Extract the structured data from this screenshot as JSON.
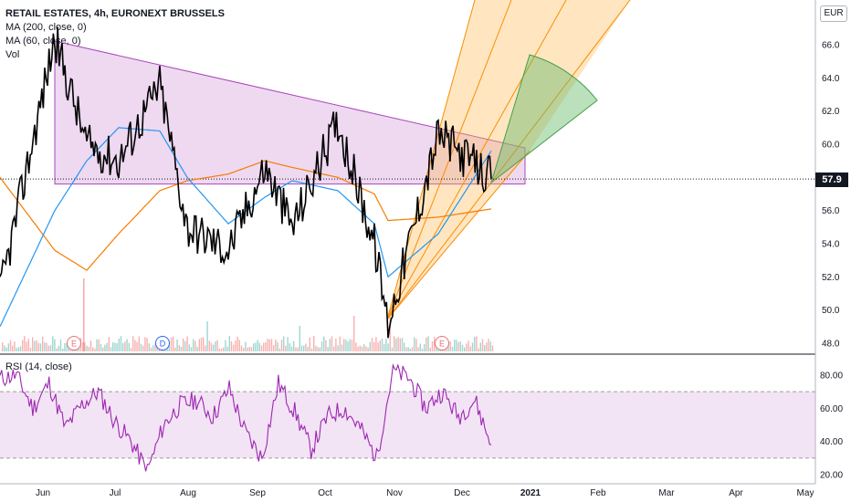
{
  "legend": {
    "title": "RETAIL ESTATES, 4h, EURONEXT BRUSSELS",
    "ma200": "MA (200, close, 0)",
    "ma60": "MA (60, close, 0)",
    "vol": "Vol"
  },
  "currency": "EUR",
  "last_price": "57.9",
  "rsi_label": "RSI (14, close)",
  "event_markers": [
    {
      "letter": "E",
      "color": "#e57373"
    },
    {
      "letter": "D",
      "color": "#2962ff"
    },
    {
      "letter": "E",
      "color": "#e57373"
    }
  ],
  "colors": {
    "price": "#000000",
    "ma60": "#2196f3",
    "ma200": "#f57c00",
    "triangle": "#ce93d8",
    "fan": "#ffb74d",
    "arc": "#66bb6a",
    "rsi": "#9c27b0"
  },
  "chart_data": [
    {
      "type": "line",
      "title": "",
      "x_ticks": [
        "Jun",
        "Jul",
        "Aug",
        "Sep",
        "Oct",
        "Nov",
        "Dec",
        "2021",
        "Feb",
        "Mar",
        "Apr",
        "May"
      ],
      "y_ticks": [
        "48.0",
        "50.0",
        "52.0",
        "54.0",
        "56.0",
        "58.0",
        "60.0",
        "62.0",
        "64.0",
        "66.0"
      ],
      "ylim": [
        47.2,
        67.8
      ],
      "series": [
        {
          "name": "Close",
          "x": [
            "May 2020",
            "Jun 2020",
            "Jun 2020",
            "Jul 2020",
            "Jul 2020",
            "Aug 2020",
            "Aug 2020",
            "Sep 2020",
            "Sep 2020",
            "Oct 2020",
            "Oct 2020",
            "Nov 2020",
            "Nov 2020",
            "Dec 2020"
          ],
          "values": [
            51.0,
            66.4,
            60.0,
            59.0,
            63.6,
            55.0,
            53.6,
            58.6,
            55.0,
            61.4,
            54.0,
            49.2,
            60.6,
            57.9
          ]
        },
        {
          "name": "MA (60, close, 0)",
          "values": [
            49.0,
            56.0,
            59.0,
            61.0,
            60.8,
            58.0,
            55.2,
            56.8,
            57.8,
            57.2,
            55.2,
            52.0,
            54.6,
            59.6
          ]
        },
        {
          "name": "MA (200, close, 0)",
          "values": [
            58.0,
            53.6,
            52.4,
            54.6,
            57.2,
            57.8,
            58.2,
            59.0,
            58.6,
            58.0,
            57.0,
            55.4,
            55.6,
            56.1
          ]
        }
      ]
    },
    {
      "type": "line",
      "title": "RSI (14, close)",
      "y_ticks": [
        "20.00",
        "40.00",
        "60.00",
        "80.00"
      ],
      "ylim": [
        17,
        88
      ],
      "bands": [
        30,
        70
      ],
      "series": [
        {
          "name": "RSI (14, close)",
          "values": [
            78,
            80,
            60,
            75,
            48,
            62,
            70,
            52,
            40,
            22,
            50,
            62,
            65,
            55,
            72,
            45,
            30,
            75,
            58,
            35,
            55,
            60,
            48,
            30,
            83,
            78,
            60,
            70,
            55,
            65,
            38
          ]
        }
      ]
    }
  ]
}
